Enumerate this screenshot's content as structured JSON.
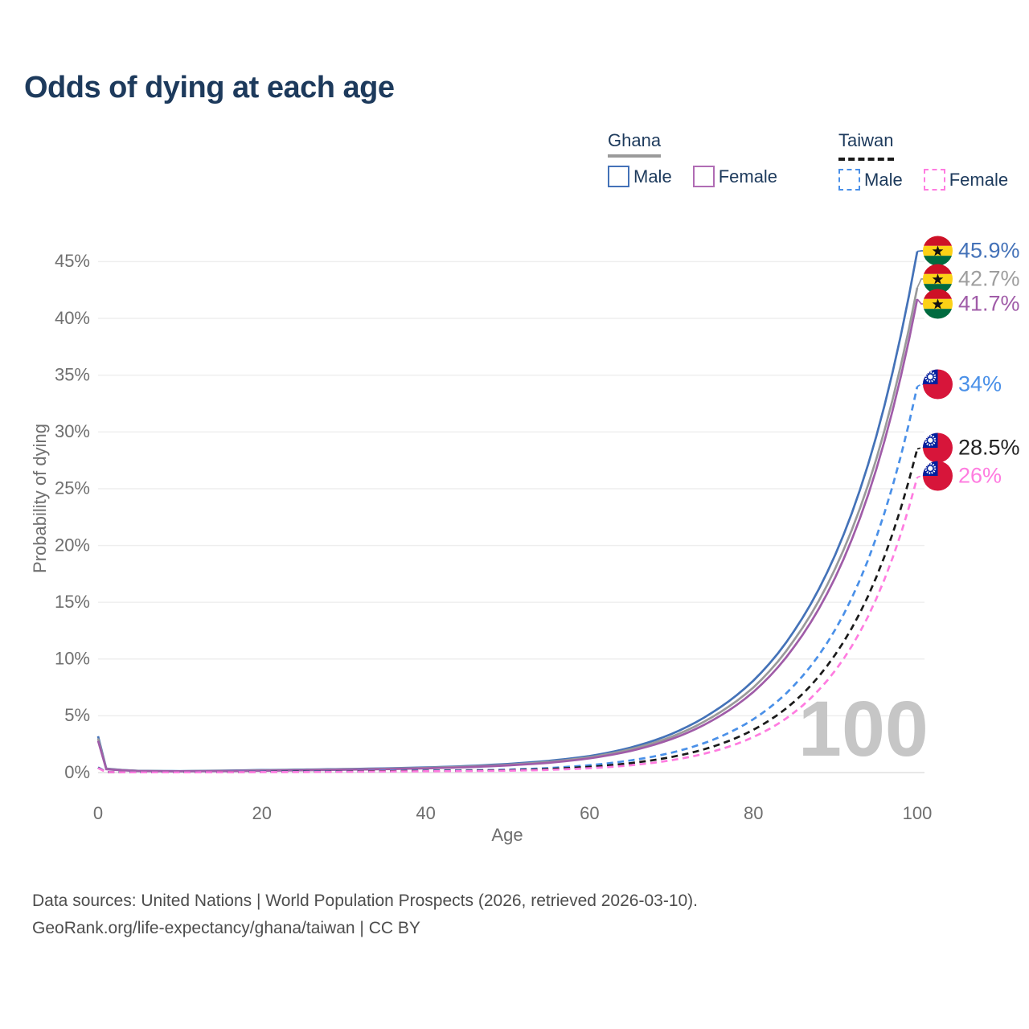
{
  "title": "Odds of dying at each age",
  "watermark": "100",
  "legend": {
    "groups": [
      {
        "label": "Ghana",
        "line_style": "solid",
        "underline_color": "#9a9a9a",
        "items": [
          {
            "label": "Male",
            "color": "#4472b8",
            "dashed": false
          },
          {
            "label": "Female",
            "color": "#b06cb4",
            "dashed": false
          }
        ]
      },
      {
        "label": "Taiwan",
        "line_style": "dashed",
        "underline_color": "#1a1a1a",
        "items": [
          {
            "label": "Male",
            "color": "#4a90e8",
            "dashed": true
          },
          {
            "label": "Female",
            "color": "#ff7ce0",
            "dashed": true
          }
        ]
      }
    ]
  },
  "axes": {
    "y_label": "Probability of dying",
    "x_label": "Age",
    "y_ticks": [
      "0%",
      "5%",
      "10%",
      "15%",
      "20%",
      "25%",
      "30%",
      "35%",
      "40%",
      "45%"
    ],
    "x_ticks": [
      "0",
      "20",
      "40",
      "60",
      "80",
      "100"
    ]
  },
  "end_labels": [
    {
      "country": "Ghana",
      "value": "45.9%",
      "color": "#4472b8"
    },
    {
      "country": "Ghana",
      "value": "42.7%",
      "color": "#9e9e9e"
    },
    {
      "country": "Ghana",
      "value": "41.7%",
      "color": "#a05ca8"
    },
    {
      "country": "Taiwan",
      "value": "34%",
      "color": "#4a90e8"
    },
    {
      "country": "Taiwan",
      "value": "28.5%",
      "color": "#222222"
    },
    {
      "country": "Taiwan",
      "value": "26%",
      "color": "#ff7ce0"
    }
  ],
  "footer": {
    "line1": "Data sources: United Nations | World Population Prospects (2026, retrieved 2026-03-10).",
    "line2": "GeoRank.org/life-expectancy/ghana/taiwan | CC BY"
  },
  "chart_data": {
    "type": "line",
    "title": "Odds of dying at each age",
    "xlabel": "Age",
    "ylabel": "Probability of dying",
    "x_range": [
      0,
      100
    ],
    "y_range_percent": [
      0,
      46
    ],
    "grid": "horizontal",
    "legend_position": "top-right",
    "ages": [
      0,
      1,
      5,
      10,
      15,
      20,
      25,
      30,
      35,
      40,
      45,
      50,
      55,
      60,
      65,
      70,
      75,
      80,
      85,
      90,
      95,
      100
    ],
    "series": [
      {
        "name": "Ghana Male",
        "color": "#4472b8",
        "dash": "solid",
        "end_label": "45.9%",
        "values": [
          3.2,
          0.35,
          0.15,
          0.13,
          0.17,
          0.22,
          0.26,
          0.31,
          0.37,
          0.45,
          0.57,
          0.76,
          1.03,
          1.45,
          2.2,
          3.4,
          5.3,
          8.1,
          12.5,
          19.2,
          29.6,
          45.9
        ]
      },
      {
        "name": "Ghana Both sexes",
        "color": "#9a9a9a",
        "dash": "solid",
        "end_label": "42.7%",
        "values": [
          3.0,
          0.33,
          0.14,
          0.12,
          0.15,
          0.19,
          0.23,
          0.28,
          0.33,
          0.41,
          0.52,
          0.69,
          0.94,
          1.35,
          2.05,
          3.15,
          4.9,
          7.5,
          11.7,
          18.0,
          27.6,
          42.7
        ]
      },
      {
        "name": "Ghana Female",
        "color": "#a05ca8",
        "dash": "solid",
        "end_label": "41.7%",
        "values": [
          2.8,
          0.3,
          0.13,
          0.11,
          0.13,
          0.16,
          0.2,
          0.25,
          0.3,
          0.37,
          0.47,
          0.63,
          0.86,
          1.25,
          1.9,
          2.95,
          4.6,
          7.1,
          11.1,
          17.2,
          26.7,
          41.7
        ]
      },
      {
        "name": "Taiwan Male",
        "color": "#4a90e8",
        "dash": "dashed",
        "end_label": "34%",
        "values": [
          0.45,
          0.05,
          0.03,
          0.03,
          0.05,
          0.08,
          0.1,
          0.12,
          0.16,
          0.17,
          0.2,
          0.25,
          0.4,
          0.65,
          1.07,
          1.75,
          2.87,
          4.7,
          7.7,
          12.6,
          20.7,
          34.0
        ]
      },
      {
        "name": "Taiwan Both sexes",
        "color": "#1a1a1a",
        "dash": "dashed",
        "end_label": "28.5%",
        "values": [
          0.42,
          0.045,
          0.025,
          0.025,
          0.04,
          0.06,
          0.08,
          0.1,
          0.12,
          0.14,
          0.16,
          0.2,
          0.32,
          0.5,
          0.83,
          1.37,
          2.27,
          3.77,
          6.25,
          10.4,
          17.2,
          28.5
        ]
      },
      {
        "name": "Taiwan Female",
        "color": "#ff7ce0",
        "dash": "dashed",
        "end_label": "26%",
        "values": [
          0.4,
          0.04,
          0.02,
          0.02,
          0.03,
          0.04,
          0.05,
          0.07,
          0.09,
          0.11,
          0.13,
          0.16,
          0.24,
          0.38,
          0.64,
          1.09,
          1.85,
          3.13,
          5.3,
          9.0,
          15.3,
          26.0
        ]
      }
    ]
  }
}
